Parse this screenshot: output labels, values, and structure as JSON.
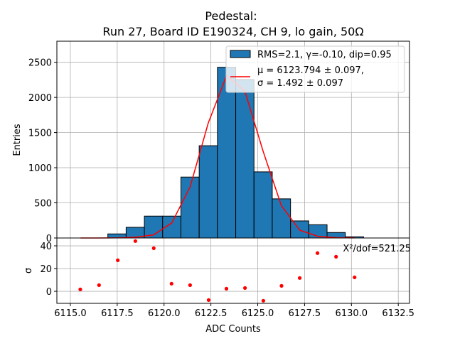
{
  "chart_data": [
    {
      "type": "bar",
      "title_line1": "Pedestal:",
      "title_line2": "Run 27, Board ID E190324, CH 9, lo gain, 50Ω",
      "xlabel": "ADC Counts",
      "ylabel": "Entries",
      "xlim": [
        6114.28,
        6133.1
      ],
      "ylim": [
        0,
        2800
      ],
      "grid": true,
      "xticks": [
        6115.0,
        6117.5,
        6120.0,
        6122.5,
        6125.0,
        6127.5,
        6130.0,
        6132.5
      ],
      "xtick_labels": [
        "6115.0",
        "6117.5",
        "6120.0",
        "6122.5",
        "6125.0",
        "6127.5",
        "6130.0",
        "6132.5"
      ],
      "yticks": [
        0,
        500,
        1000,
        1500,
        2000,
        2500
      ],
      "ytick_labels": [
        "0",
        "500",
        "1000",
        "1500",
        "2000",
        "2500"
      ],
      "bin_edges": [
        6115.05,
        6116.025,
        6117.0,
        6117.975,
        6118.95,
        6119.925,
        6120.9,
        6121.875,
        6122.85,
        6123.825,
        6124.8,
        6125.775,
        6126.75,
        6127.725,
        6128.7,
        6129.675,
        6130.65
      ],
      "counts": [
        0,
        0,
        58,
        152,
        311,
        311,
        867,
        1313,
        2429,
        2254,
        941,
        557,
        243,
        189,
        78,
        17
      ],
      "fit": {
        "x": [
          6115.54,
          6116.51,
          6117.49,
          6118.46,
          6119.44,
          6120.41,
          6121.39,
          6122.36,
          6123.34,
          6124.31,
          6125.29,
          6126.26,
          6127.24,
          6128.21,
          6129.19,
          6130.16
        ],
        "y": [
          0,
          0,
          2,
          10,
          44,
          213,
          726,
          1636,
          2311,
          2092,
          1232,
          462,
          111,
          23,
          5,
          1
        ]
      },
      "legend": {
        "placement": "top-right",
        "hist_label": "RMS=2.1, γ=-0.10, dip=0.95",
        "fit_label_line1": "μ = 6123.794 ± 0.097,",
        "fit_label_line2": "σ = 1.492 ± 0.097"
      },
      "colors": {
        "bar": "#1f77b4",
        "fit": "#ff0000",
        "grid": "#b0b0b0"
      }
    },
    {
      "type": "scatter",
      "ylabel": "σ",
      "xlabel": "ADC Counts",
      "xlim": [
        6114.28,
        6133.1
      ],
      "ylim": [
        -10.6,
        46.9
      ],
      "yticks": [
        0,
        20,
        40
      ],
      "ytick_labels": [
        "0",
        "20",
        "40"
      ],
      "annotation": "X²/dof=521.25",
      "x": [
        6115.53,
        6116.53,
        6117.53,
        6118.47,
        6119.45,
        6120.4,
        6121.39,
        6122.38,
        6123.33,
        6124.32,
        6125.3,
        6126.27,
        6127.24,
        6128.19,
        6129.18,
        6130.17
      ],
      "y": [
        1.7,
        5.4,
        27.3,
        44.2,
        37.9,
        6.7,
        5.4,
        -7.7,
        2.3,
        2.9,
        -8.3,
        4.8,
        11.7,
        33.6,
        30.4,
        12.3
      ],
      "colors": {
        "point": "#ff0000"
      }
    }
  ]
}
